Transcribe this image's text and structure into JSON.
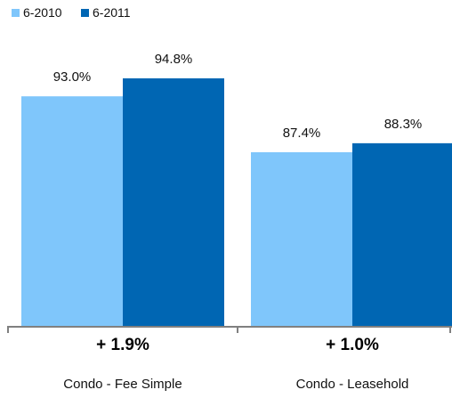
{
  "chart_data": {
    "type": "bar",
    "categories": [
      "Condo - Fee Simple",
      "Condo - Leasehold"
    ],
    "series": [
      {
        "name": "6-2010",
        "values": [
          93.0,
          87.4
        ],
        "labels": [
          "93.0%",
          "87.4%"
        ],
        "color": "#7fc6fb"
      },
      {
        "name": "6-2011",
        "values": [
          94.8,
          88.3
        ],
        "labels": [
          "94.8%",
          "88.3%"
        ],
        "color": "#0066b3"
      }
    ],
    "change_labels": [
      "+ 1.9%",
      "+ 1.0%"
    ],
    "ylim": [
      70,
      100
    ],
    "grid": false,
    "legend": "top-left"
  }
}
